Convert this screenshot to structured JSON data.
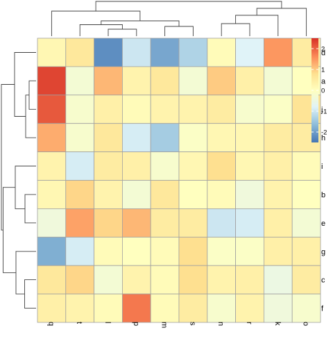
{
  "chart_data": {
    "type": "heatmap",
    "title": "",
    "rows": [
      "d",
      "a",
      "j",
      "h",
      "i",
      "b",
      "e",
      "g",
      "c",
      "f"
    ],
    "cols": [
      "q",
      "t",
      "l",
      "p",
      "m",
      "s",
      "n",
      "r",
      "k",
      "o"
    ],
    "values": [
      [
        0.2,
        0.6,
        -2.2,
        -1.0,
        -1.9,
        -1.3,
        0.1,
        -0.8,
        1.5,
        0.5
      ],
      [
        2.3,
        -0.3,
        1.2,
        0.3,
        0.6,
        -0.3,
        1.0,
        0.4,
        -0.3,
        0.0
      ],
      [
        2.1,
        -0.2,
        0.4,
        0.1,
        0.3,
        0.3,
        0.5,
        -0.2,
        -0.1,
        0.7
      ],
      [
        1.3,
        -0.2,
        0.6,
        -0.9,
        -1.4,
        -0.1,
        0.2,
        0.2,
        0.5,
        0.5
      ],
      [
        0.3,
        -0.9,
        0.5,
        0.4,
        -0.2,
        0.2,
        0.8,
        0.2,
        0.4,
        0.1
      ],
      [
        0.2,
        0.9,
        0.3,
        -0.3,
        0.6,
        0.0,
        0.1,
        -0.4,
        0.3,
        0.0
      ],
      [
        -0.4,
        1.4,
        0.9,
        1.2,
        0.5,
        0.5,
        -1.0,
        -0.9,
        0.4,
        -0.3
      ],
      [
        -1.8,
        -0.9,
        0.1,
        0.0,
        0.1,
        0.8,
        -0.1,
        -0.1,
        0.4,
        0.4
      ],
      [
        0.6,
        0.9,
        -0.3,
        0.3,
        0.1,
        0.8,
        0.3,
        0.4,
        -0.5,
        0.5
      ],
      [
        0.4,
        0.3,
        0.1,
        1.8,
        0.1,
        0.5,
        -0.2,
        0.3,
        -0.4,
        -0.2
      ]
    ],
    "color_scale": {
      "min": -2.5,
      "max": 2.5,
      "stops": [
        [
          -2.5,
          "#4575b4"
        ],
        [
          -1.6,
          "#91bfdb"
        ],
        [
          -0.8,
          "#e0f3f8"
        ],
        [
          0,
          "#ffffbf"
        ],
        [
          0.8,
          "#fee090"
        ],
        [
          1.6,
          "#fc8d59"
        ],
        [
          2.5,
          "#d73027"
        ]
      ]
    },
    "legend": {
      "ticks": [
        2,
        1,
        0,
        -1,
        -2
      ],
      "tick_labels": [
        "2",
        "1",
        "0",
        "-1",
        "-2"
      ],
      "placement": "right"
    },
    "grid_color": "#a0a0a0",
    "dendrograms": {
      "rows": true,
      "cols": true
    }
  }
}
